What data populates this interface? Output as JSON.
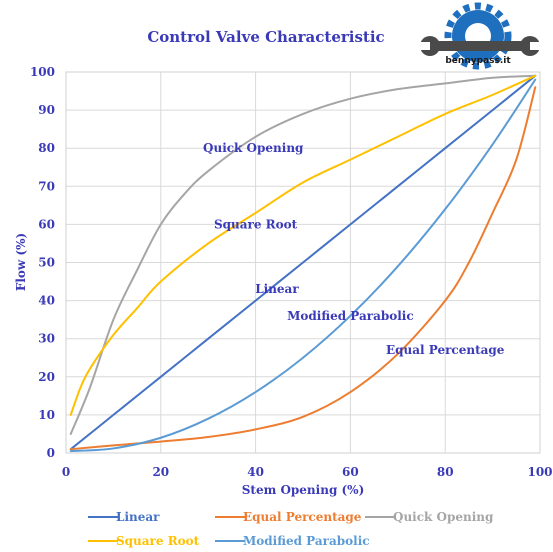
{
  "chart_data": {
    "type": "line",
    "title": "Control Valve Characteristic",
    "xlabel": "Stem Opening (%)",
    "ylabel": "Flow (%)",
    "xlim": [
      0,
      100
    ],
    "ylim": [
      0,
      100
    ],
    "xticks": [
      0,
      20,
      40,
      60,
      80,
      100
    ],
    "yticks": [
      0,
      10,
      20,
      30,
      40,
      50,
      60,
      70,
      80,
      90,
      100
    ],
    "grid": true,
    "legend_position": "bottom",
    "series": [
      {
        "name": "Linear",
        "color": "#4472c4",
        "x": [
          1,
          10,
          20,
          30,
          40,
          50,
          60,
          70,
          80,
          90,
          99
        ],
        "y": [
          1,
          10,
          20,
          30,
          40,
          50,
          60,
          70,
          80,
          90,
          99
        ]
      },
      {
        "name": "Equal Percentage",
        "color": "#ed7d31",
        "x": [
          1,
          10,
          20,
          30,
          40,
          50,
          60,
          70,
          80,
          85,
          90,
          95,
          99
        ],
        "y": [
          1,
          2,
          3,
          4.2,
          6.2,
          9.5,
          16,
          26,
          40,
          50,
          63,
          77,
          96
        ]
      },
      {
        "name": "Quick Opening",
        "color": "#a5a5a5",
        "x": [
          1,
          5,
          10,
          15,
          20,
          25,
          30,
          40,
          50,
          60,
          70,
          80,
          90,
          99
        ],
        "y": [
          5,
          17,
          35,
          48,
          60,
          68,
          74,
          83,
          89,
          93,
          95.5,
          97,
          98.5,
          99
        ]
      },
      {
        "name": "Square Root",
        "color": "#ffc000",
        "x": [
          1,
          3,
          5,
          10,
          15,
          20,
          30,
          40,
          50,
          60,
          70,
          80,
          90,
          99
        ],
        "y": [
          10,
          17,
          22,
          31,
          38,
          45,
          55,
          63,
          71,
          77,
          83,
          89,
          94,
          99
        ]
      },
      {
        "name": "Modified Parabolic",
        "color": "#5b9bd5",
        "x": [
          1,
          10,
          20,
          30,
          40,
          50,
          60,
          70,
          80,
          90,
          99
        ],
        "y": [
          0.5,
          1.2,
          4,
          9,
          16,
          25,
          36,
          49,
          64,
          81,
          98
        ]
      }
    ],
    "annotations": [
      {
        "text": "Quick Opening",
        "x": 39.5,
        "y": 80
      },
      {
        "text": "Square Root",
        "x": 40,
        "y": 60
      },
      {
        "text": "Linear",
        "x": 44.5,
        "y": 43
      },
      {
        "text": "Modified Parabolic",
        "x": 60,
        "y": 36
      },
      {
        "text": "Equal Percentage",
        "x": 80,
        "y": 27
      }
    ]
  },
  "logo": {
    "text": "bennypass.it"
  }
}
